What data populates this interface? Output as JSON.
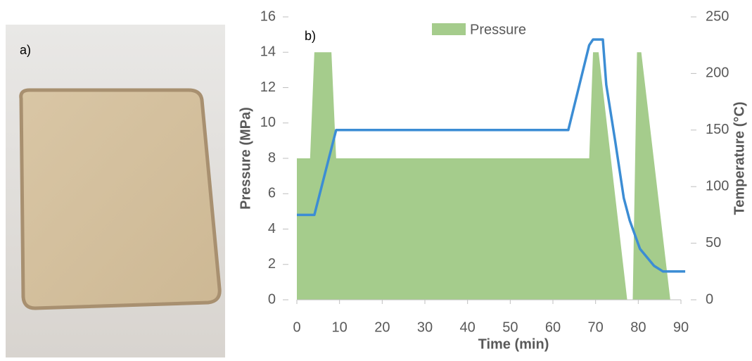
{
  "chart_data": {
    "type": "combo",
    "panel_labels": [
      "a)",
      "b)"
    ],
    "xlabel": "Time (min)",
    "ylabel": "Pressure (MPa)",
    "y2label": "Temperature (°C)",
    "xlim": [
      0,
      90
    ],
    "xticks": [
      0,
      10,
      20,
      30,
      40,
      50,
      60,
      70,
      80,
      90
    ],
    "ylim": [
      0,
      16
    ],
    "yticks": [
      0,
      2,
      4,
      6,
      8,
      10,
      12,
      14,
      16
    ],
    "y2lim": [
      0,
      250
    ],
    "y2ticks": [
      0,
      50,
      100,
      150,
      200,
      250
    ],
    "legend": "top",
    "series": [
      {
        "name": "Pressure",
        "type": "area",
        "color": "#a5cc8c",
        "x": [
          0,
          3.1,
          4.1,
          8.1,
          9.2,
          68.5,
          69.4,
          70.7,
          77.4,
          78.7,
          79.7,
          80.7,
          87.5
        ],
        "values": [
          8,
          8,
          14,
          14,
          8,
          8,
          14,
          14,
          0,
          0,
          14,
          14,
          0
        ]
      },
      {
        "type": "line",
        "axis": "y2",
        "color": "#3c8dd4",
        "x": [
          0,
          4.1,
          9.2,
          63.6,
          68.5,
          69.4,
          71.7,
          72.5,
          74.6,
          76.6,
          78,
          80.4,
          83.7,
          85.8,
          91
        ],
        "values": [
          75,
          75,
          150,
          150,
          225,
          230,
          230,
          190,
          140,
          90,
          70,
          45,
          30,
          25,
          25
        ]
      }
    ]
  }
}
